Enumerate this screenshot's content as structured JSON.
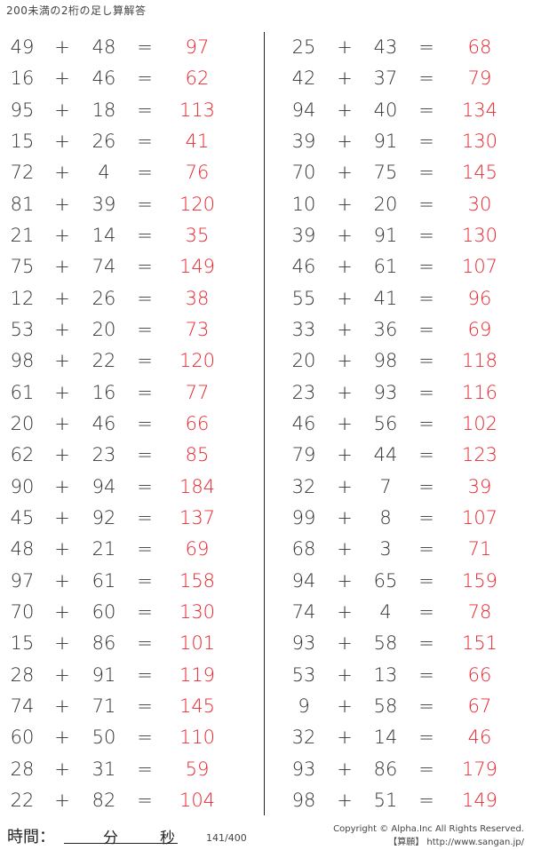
{
  "title": "200未満の2桁の足し算解答",
  "answer_color": "#e8262f",
  "plus": "+",
  "equals": "=",
  "left_problems": [
    {
      "a": "49",
      "b": "48",
      "answer": "97"
    },
    {
      "a": "16",
      "b": "46",
      "answer": "62"
    },
    {
      "a": "95",
      "b": "18",
      "answer": "113"
    },
    {
      "a": "15",
      "b": "26",
      "answer": "41"
    },
    {
      "a": "72",
      "b": "4",
      "answer": "76"
    },
    {
      "a": "81",
      "b": "39",
      "answer": "120"
    },
    {
      "a": "21",
      "b": "14",
      "answer": "35"
    },
    {
      "a": "75",
      "b": "74",
      "answer": "149"
    },
    {
      "a": "12",
      "b": "26",
      "answer": "38"
    },
    {
      "a": "53",
      "b": "20",
      "answer": "73"
    },
    {
      "a": "98",
      "b": "22",
      "answer": "120"
    },
    {
      "a": "61",
      "b": "16",
      "answer": "77"
    },
    {
      "a": "20",
      "b": "46",
      "answer": "66"
    },
    {
      "a": "62",
      "b": "23",
      "answer": "85"
    },
    {
      "a": "90",
      "b": "94",
      "answer": "184"
    },
    {
      "a": "45",
      "b": "92",
      "answer": "137"
    },
    {
      "a": "48",
      "b": "21",
      "answer": "69"
    },
    {
      "a": "97",
      "b": "61",
      "answer": "158"
    },
    {
      "a": "70",
      "b": "60",
      "answer": "130"
    },
    {
      "a": "15",
      "b": "86",
      "answer": "101"
    },
    {
      "a": "28",
      "b": "91",
      "answer": "119"
    },
    {
      "a": "74",
      "b": "71",
      "answer": "145"
    },
    {
      "a": "60",
      "b": "50",
      "answer": "110"
    },
    {
      "a": "28",
      "b": "31",
      "answer": "59"
    },
    {
      "a": "22",
      "b": "82",
      "answer": "104"
    }
  ],
  "right_problems": [
    {
      "a": "25",
      "b": "43",
      "answer": "68"
    },
    {
      "a": "42",
      "b": "37",
      "answer": "79"
    },
    {
      "a": "94",
      "b": "40",
      "answer": "134"
    },
    {
      "a": "39",
      "b": "91",
      "answer": "130"
    },
    {
      "a": "70",
      "b": "75",
      "answer": "145"
    },
    {
      "a": "10",
      "b": "20",
      "answer": "30"
    },
    {
      "a": "39",
      "b": "91",
      "answer": "130"
    },
    {
      "a": "46",
      "b": "61",
      "answer": "107"
    },
    {
      "a": "55",
      "b": "41",
      "answer": "96"
    },
    {
      "a": "33",
      "b": "36",
      "answer": "69"
    },
    {
      "a": "20",
      "b": "98",
      "answer": "118"
    },
    {
      "a": "23",
      "b": "93",
      "answer": "116"
    },
    {
      "a": "46",
      "b": "56",
      "answer": "102"
    },
    {
      "a": "79",
      "b": "44",
      "answer": "123"
    },
    {
      "a": "32",
      "b": "7",
      "answer": "39"
    },
    {
      "a": "99",
      "b": "8",
      "answer": "107"
    },
    {
      "a": "68",
      "b": "3",
      "answer": "71"
    },
    {
      "a": "94",
      "b": "65",
      "answer": "159"
    },
    {
      "a": "74",
      "b": "4",
      "answer": "78"
    },
    {
      "a": "93",
      "b": "58",
      "answer": "151"
    },
    {
      "a": "53",
      "b": "13",
      "answer": "66"
    },
    {
      "a": "9",
      "b": "58",
      "answer": "67"
    },
    {
      "a": "32",
      "b": "14",
      "answer": "46"
    },
    {
      "a": "93",
      "b": "86",
      "answer": "179"
    },
    {
      "a": "98",
      "b": "51",
      "answer": "149"
    }
  ],
  "footer": {
    "time_label": "時間：",
    "minutes_label": "分",
    "seconds_label": "秒",
    "page_number": "141/400",
    "copyright": "Copyright © Alpha.Inc All Rights Reserved.",
    "site": "【算願】 http://www.sangan.jp/"
  }
}
